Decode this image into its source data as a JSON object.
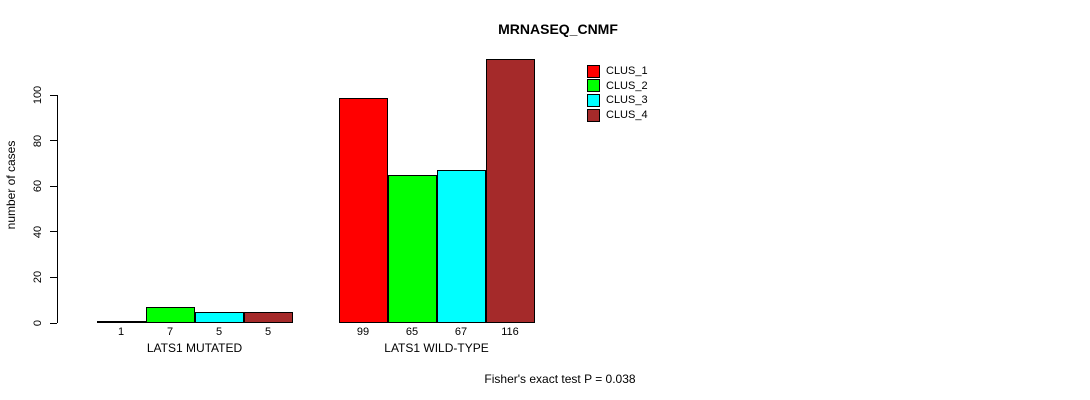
{
  "title": "MRNASEQ_CNMF",
  "caption": "Fisher's exact test P = 0.038",
  "y_axis_label": "number of cases",
  "accent_colors": {
    "clus_1": "#FF0000",
    "clus_2": "#00FF00",
    "clus_3": "#00FFFF",
    "clus_4": "#A52A2A"
  },
  "chart_data": {
    "type": "bar",
    "title": "MRNASEQ_CNMF",
    "xlabel": "",
    "ylabel": "number of cases",
    "ylim": [
      0,
      116
    ],
    "yticks": [
      0,
      20,
      40,
      60,
      80,
      100
    ],
    "grid": false,
    "legend_position": "top-right",
    "categories": [
      "LATS1 MUTATED",
      "LATS1 WILD-TYPE"
    ],
    "series": [
      {
        "name": "CLUS_1",
        "color": "#FF0000",
        "values": [
          1,
          99
        ]
      },
      {
        "name": "CLUS_2",
        "color": "#00FF00",
        "values": [
          7,
          65
        ]
      },
      {
        "name": "CLUS_3",
        "color": "#00FFFF",
        "values": [
          5,
          67
        ]
      },
      {
        "name": "CLUS_4",
        "color": "#A52A2A",
        "values": [
          5,
          116
        ]
      }
    ],
    "bar_value_labels": [
      [
        1,
        7,
        5,
        5
      ],
      [
        99,
        65,
        67,
        116
      ]
    ],
    "annotation": "Fisher's exact test P = 0.038"
  }
}
